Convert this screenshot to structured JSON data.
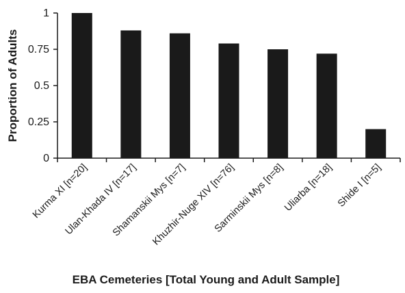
{
  "chart_data": {
    "type": "bar",
    "categories": [
      "Kurma XI [n=20]",
      "Ulan-Khada IV [n=17]",
      "Shamanskii Mys [n=7]",
      "Khuzhir-Nuge XIV [n=76]",
      "Sarminskii Mys [n=8]",
      "Uliarba [n=18]",
      "Shide I [n=5]"
    ],
    "values": [
      1.0,
      0.88,
      0.86,
      0.79,
      0.75,
      0.72,
      0.2
    ],
    "ylabel": "Proportion of Adults",
    "xlabel": "EBA Cemeteries [Total Young and Adult Sample]",
    "ylim": [
      0,
      1
    ],
    "yticks": [
      0,
      0.25,
      0.5,
      0.75,
      1
    ],
    "ytick_labels": [
      "0",
      "0.25",
      "0.5",
      "0.75",
      "1"
    ],
    "bar_color": "#1a1a1a",
    "grid": false
  }
}
